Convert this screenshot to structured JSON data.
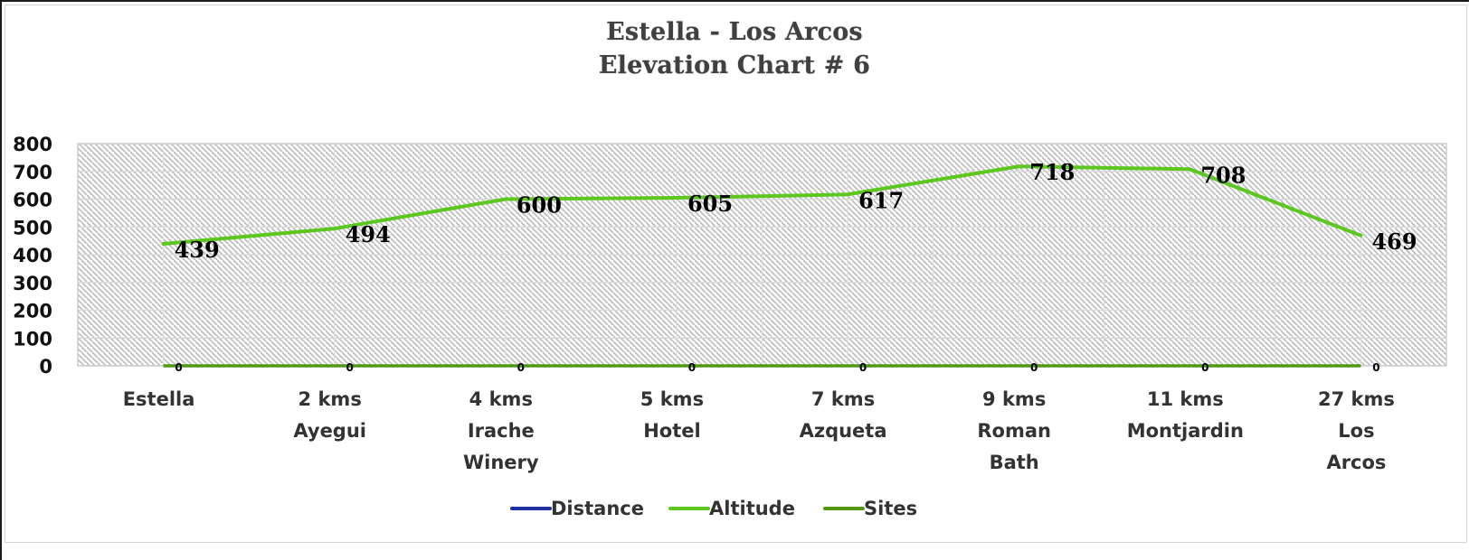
{
  "chart_data": {
    "type": "line",
    "title": "Estella - Los Arcos",
    "subtitle": "Elevation Chart # 6",
    "xlabel": "",
    "ylabel": "",
    "ylim": [
      0,
      800
    ],
    "yticks": [
      0,
      100,
      200,
      300,
      400,
      500,
      600,
      700,
      800
    ],
    "grid": true,
    "legend_position": "bottom",
    "categories": [
      [
        "Estella"
      ],
      [
        "2 kms",
        "Ayegui"
      ],
      [
        "4 kms",
        "Irache",
        "Winery"
      ],
      [
        "5 kms",
        "Hotel"
      ],
      [
        "7 kms",
        "Azqueta"
      ],
      [
        "9 kms",
        "Roman",
        "Bath"
      ],
      [
        "11 kms",
        "Montjardin"
      ],
      [
        "27 kms",
        "Los",
        "Arcos"
      ]
    ],
    "series": [
      {
        "name": "Distance",
        "color": "#1f2f9e",
        "values": []
      },
      {
        "name": "Altitude",
        "color": "#5cc81f",
        "values": [
          439,
          494,
          600,
          605,
          617,
          718,
          708,
          469
        ]
      },
      {
        "name": "Sites",
        "color": "#4f9a12",
        "values": [
          0,
          0,
          0,
          0,
          0,
          0,
          0,
          0
        ]
      }
    ]
  }
}
